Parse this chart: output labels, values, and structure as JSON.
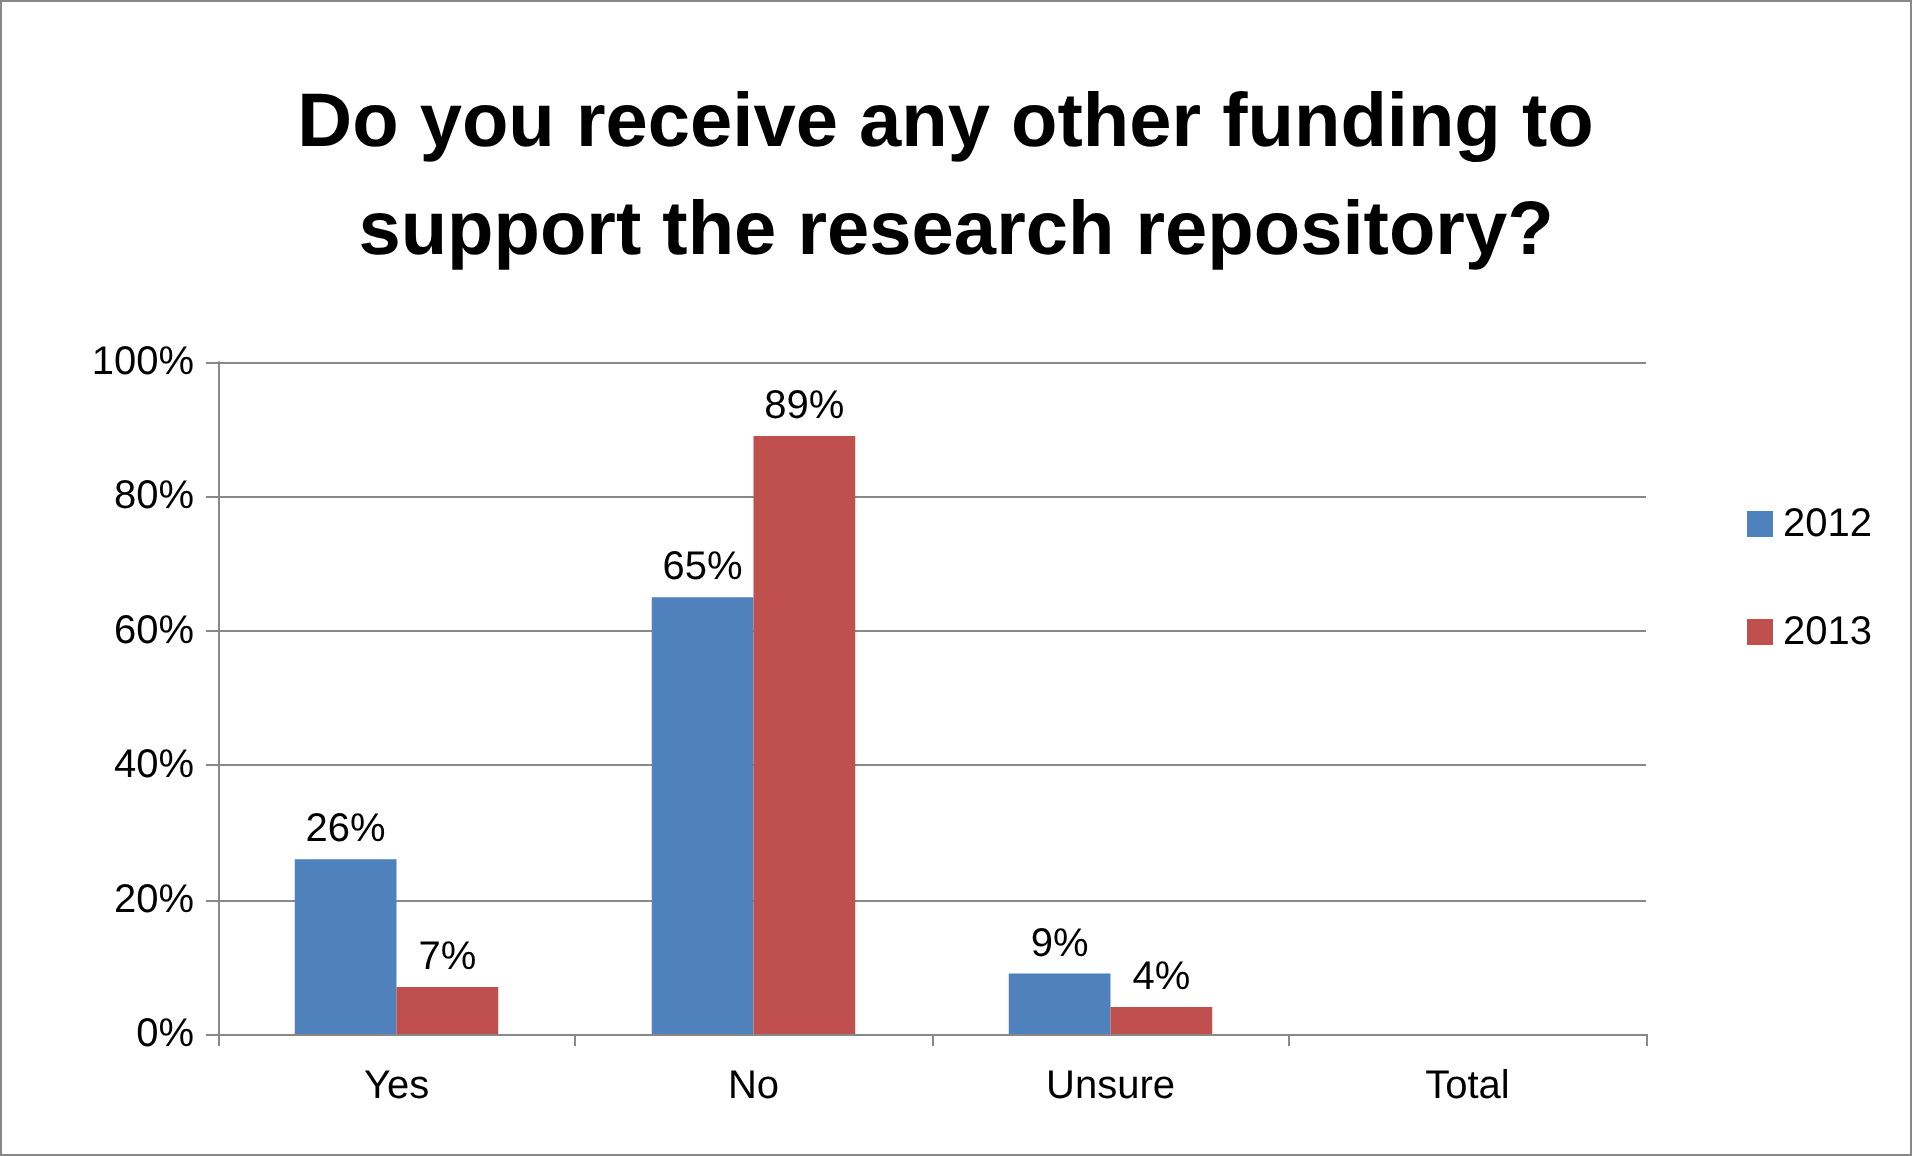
{
  "chart_data": {
    "type": "bar",
    "title": "Do you receive any other funding to support the research repository?",
    "categories": [
      "Yes",
      "No",
      "Unsure",
      "Total"
    ],
    "series": [
      {
        "name": "2012",
        "color": "#4f81bd",
        "values": [
          26,
          65,
          9,
          null
        ],
        "value_labels": [
          "26%",
          "65%",
          "9%",
          null
        ]
      },
      {
        "name": "2013",
        "color": "#c0504d",
        "values": [
          7,
          89,
          4,
          null
        ],
        "value_labels": [
          "7%",
          "89%",
          "4%",
          null
        ]
      }
    ],
    "ylim": [
      0,
      100
    ],
    "yticks": [
      {
        "value": 0,
        "label": "0%"
      },
      {
        "value": 20,
        "label": "20%"
      },
      {
        "value": 40,
        "label": "40%"
      },
      {
        "value": 60,
        "label": "60%"
      },
      {
        "value": 80,
        "label": "80%"
      },
      {
        "value": 100,
        "label": "100%"
      }
    ],
    "grid": "y",
    "legend": "right"
  }
}
